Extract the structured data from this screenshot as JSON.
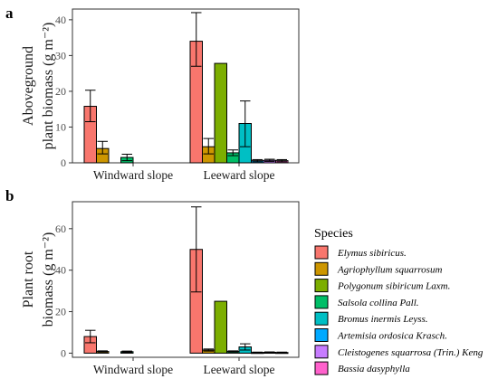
{
  "species_colors": [
    "#F8766D",
    "#CD9600",
    "#7CAE00",
    "#00BE67",
    "#00BFC4",
    "#00A9FF",
    "#C77CFF",
    "#FF61CC"
  ],
  "legend": {
    "title": "Species",
    "items": [
      "Elymus sibiricus.",
      "Agriophyllum squarrosum",
      "Polygonum sibiricum Laxm.",
      "Salsola collina Pall.",
      "Bromus inermis Leyss.",
      "Artemisia ordosica Krasch.",
      "Cleistogenes squarrosa (Trin.) Keng",
      "Bassia dasyphylla"
    ]
  },
  "chart_data": [
    {
      "panel_label": "a",
      "type": "bar",
      "ylabel_line1": "Aboveground",
      "ylabel_line2": "plant biomass (g m⁻²)",
      "categories": [
        "Windward slope",
        "Leeward slope"
      ],
      "ylim": [
        0,
        43
      ],
      "yticks": [
        0,
        10,
        20,
        30,
        40
      ],
      "grid": false,
      "series": [
        {
          "name": "Elymus sibiricus.",
          "values": [
            15.8,
            34.0
          ],
          "err_low": [
            11.5,
            27.0
          ],
          "err_high": [
            20.3,
            42.0
          ]
        },
        {
          "name": "Agriophyllum squarrosum",
          "values": [
            4.0,
            4.5
          ],
          "err_low": [
            2.5,
            2.5
          ],
          "err_high": [
            6.0,
            6.8
          ]
        },
        {
          "name": "Polygonum sibiricum Laxm.",
          "values": [
            0,
            27.8
          ],
          "err_low": [
            null,
            null
          ],
          "err_high": [
            null,
            null
          ]
        },
        {
          "name": "Salsola collina Pall.",
          "values": [
            1.5,
            2.8
          ],
          "err_low": [
            0.6,
            2.0
          ],
          "err_high": [
            2.4,
            3.6
          ]
        },
        {
          "name": "Bromus inermis Leyss.",
          "values": [
            0,
            11.0
          ],
          "err_low": [
            null,
            4.5
          ],
          "err_high": [
            null,
            17.3
          ]
        },
        {
          "name": "Artemisia ordosica Krasch.",
          "values": [
            0,
            0.6
          ],
          "err_low": [
            null,
            0.3
          ],
          "err_high": [
            null,
            0.9
          ]
        },
        {
          "name": "Cleistogenes squarrosa (Trin.) Keng",
          "values": [
            0,
            0.7
          ],
          "err_low": [
            null,
            0.4
          ],
          "err_high": [
            null,
            1.0
          ]
        },
        {
          "name": "Bassia dasyphylla",
          "values": [
            0,
            0.6
          ],
          "err_low": [
            null,
            0.3
          ],
          "err_high": [
            null,
            0.9
          ]
        }
      ]
    },
    {
      "panel_label": "b",
      "type": "bar",
      "ylabel_line1": "Plant root",
      "ylabel_line2": "biomass (g m⁻²)",
      "categories": [
        "Windward slope",
        "Leeward slope"
      ],
      "ylim": [
        -2,
        73
      ],
      "yticks": [
        0,
        20,
        40,
        60
      ],
      "grid": false,
      "series": [
        {
          "name": "Elymus sibiricus.",
          "values": [
            8.0,
            50.0
          ],
          "err_low": [
            5.0,
            29.5
          ],
          "err_high": [
            11.0,
            70.5
          ]
        },
        {
          "name": "Agriophyllum squarrosum",
          "values": [
            0.8,
            1.5
          ],
          "err_low": [
            0.5,
            1.0
          ],
          "err_high": [
            1.1,
            2.0
          ]
        },
        {
          "name": "Polygonum sibiricum Laxm.",
          "values": [
            0,
            25.0
          ],
          "err_low": [
            null,
            null
          ],
          "err_high": [
            null,
            null
          ]
        },
        {
          "name": "Salsola collina Pall.",
          "values": [
            0.7,
            0.8
          ],
          "err_low": [
            0.4,
            0.5
          ],
          "err_high": [
            1.0,
            1.1
          ]
        },
        {
          "name": "Bromus inermis Leyss.",
          "values": [
            0,
            3.0
          ],
          "err_low": [
            null,
            1.5
          ],
          "err_high": [
            null,
            4.5
          ]
        },
        {
          "name": "Artemisia ordosica Krasch.",
          "values": [
            0,
            0.3
          ],
          "err_low": [
            null,
            0.1
          ],
          "err_high": [
            null,
            0.5
          ]
        },
        {
          "name": "Cleistogenes squarrosa (Trin.) Keng",
          "values": [
            0,
            0.4
          ],
          "err_low": [
            null,
            0.2
          ],
          "err_high": [
            null,
            0.6
          ]
        },
        {
          "name": "Bassia dasyphylla",
          "values": [
            0,
            0.3
          ],
          "err_low": [
            null,
            0.1
          ],
          "err_high": [
            null,
            0.5
          ]
        }
      ]
    }
  ]
}
